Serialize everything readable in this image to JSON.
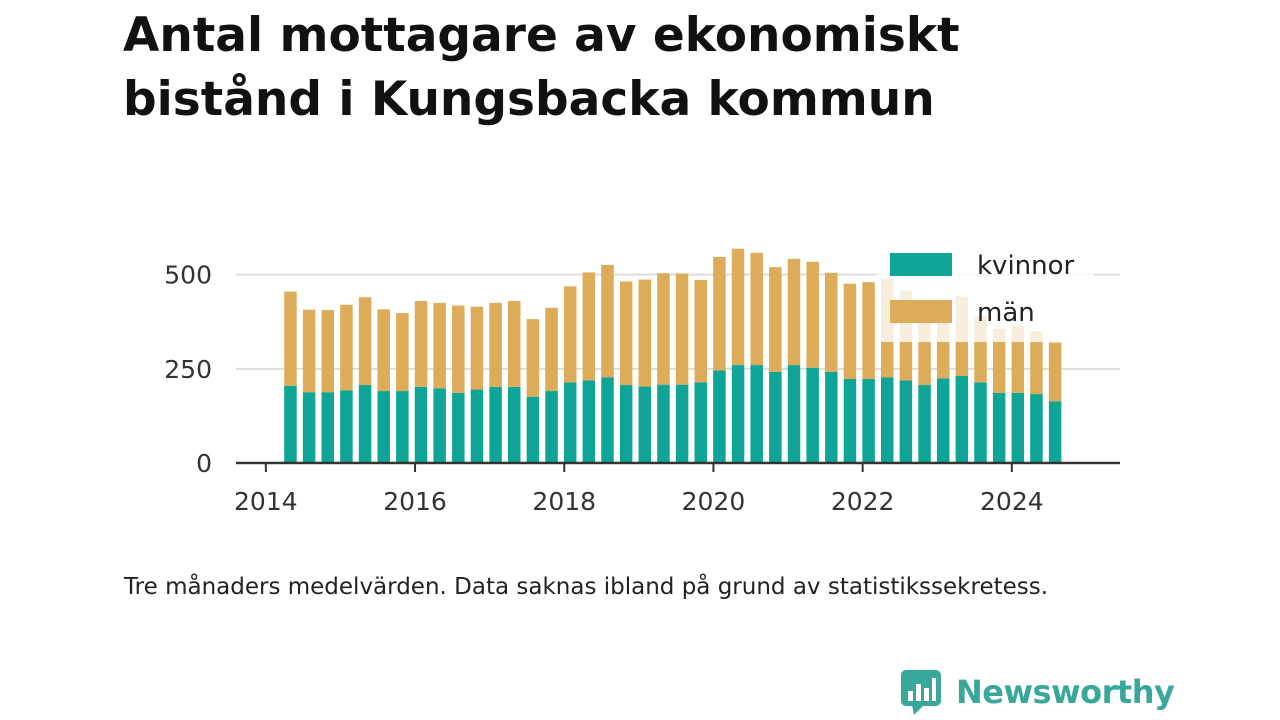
{
  "title_lines": [
    "Antal mottagare av ekonomiskt",
    "bistånd i Kungsbacka kommun"
  ],
  "note": "Tre månaders medelvärden. Data saknas ibland på grund av statistikssekretess.",
  "brand": {
    "name": "Newsworthy",
    "color": "#3aa79b",
    "icon": "chart-bubble-icon"
  },
  "colors": {
    "kvinnor": "#0ea597",
    "man": "#dcac5a",
    "grid": "#dddddd",
    "axis": "#333333"
  },
  "chart_data": {
    "type": "bar",
    "stacked": true,
    "title": "Antal mottagare av ekonomiskt bistånd i Kungsbacka kommun",
    "xlabel": "",
    "ylabel": "",
    "ylim": [
      0,
      600
    ],
    "yticks": [
      0,
      250,
      500
    ],
    "ytick_labels": [
      "0",
      "250",
      "500"
    ],
    "xticks": [
      2014,
      2016,
      2018,
      2020,
      2022,
      2024
    ],
    "xtick_labels": [
      "2014",
      "2016",
      "2018",
      "2020",
      "2022",
      "2024"
    ],
    "xlim": [
      2013.6,
      2025.45
    ],
    "grid": true,
    "legend_position": "top-right",
    "x": [
      2014.33,
      2014.58,
      2014.83,
      2015.08,
      2015.33,
      2015.58,
      2015.83,
      2016.08,
      2016.33,
      2016.58,
      2016.83,
      2017.08,
      2017.33,
      2017.58,
      2017.83,
      2018.08,
      2018.33,
      2018.58,
      2018.83,
      2019.08,
      2019.33,
      2019.58,
      2019.83,
      2020.08,
      2020.33,
      2020.58,
      2020.83,
      2021.08,
      2021.33,
      2021.58,
      2021.83,
      2022.08,
      2022.33,
      2022.58,
      2022.83,
      2023.08,
      2023.33,
      2023.58,
      2023.83,
      2024.08,
      2024.33,
      2024.58
    ],
    "series": [
      {
        "name": "kvinnor",
        "values": [
          205,
          188,
          188,
          193,
          207,
          191,
          191,
          202,
          198,
          186,
          195,
          202,
          202,
          176,
          191,
          214,
          219,
          227,
          207,
          203,
          208,
          208,
          214,
          246,
          260,
          260,
          242,
          260,
          253,
          242,
          223,
          223,
          227,
          219,
          207,
          225,
          231,
          214,
          186,
          186,
          183,
          164
        ]
      },
      {
        "name": "män",
        "values": [
          250,
          219,
          218,
          227,
          233,
          217,
          207,
          228,
          227,
          232,
          220,
          223,
          228,
          206,
          221,
          255,
          287,
          299,
          275,
          284,
          296,
          295,
          272,
          301,
          309,
          298,
          278,
          282,
          281,
          263,
          253,
          257,
          262,
          239,
          223,
          207,
          211,
          176,
          170,
          178,
          167,
          156
        ]
      }
    ]
  }
}
